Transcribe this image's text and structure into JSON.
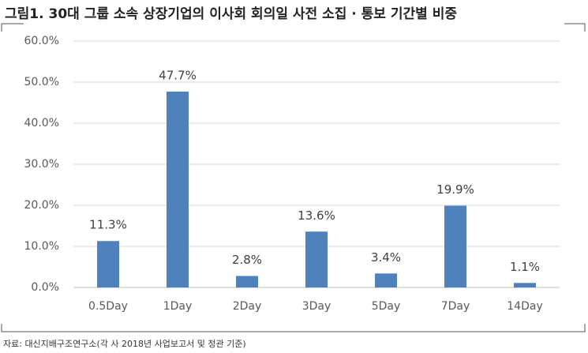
{
  "chart_data": {
    "type": "bar",
    "title": "그림1. 30대 그룹 소속 상장기업의 이사회 회의일 사전 소집 · 통보 기간별 비중",
    "categories": [
      "0.5Day",
      "1Day",
      "2Day",
      "3Day",
      "5Day",
      "7Day",
      "14Day"
    ],
    "values": [
      11.3,
      47.7,
      2.8,
      13.6,
      3.4,
      19.9,
      1.1
    ],
    "value_labels": [
      "11.3%",
      "47.7%",
      "2.8%",
      "13.6%",
      "3.4%",
      "19.9%",
      "1.1%"
    ],
    "color": "#4f81bd",
    "ylim": [
      0,
      60
    ],
    "yticks": [
      {
        "value": 0,
        "label": "0.0%"
      },
      {
        "value": 10,
        "label": "10.0%"
      },
      {
        "value": 20,
        "label": "20.0%"
      },
      {
        "value": 30,
        "label": "30.0%"
      },
      {
        "value": 40,
        "label": "40.0%"
      },
      {
        "value": 50,
        "label": "50.0%"
      },
      {
        "value": 60,
        "label": "60.0%"
      }
    ],
    "grid": true,
    "source": "자료: 대신지배구조연구소(각 사 2018년 사업보고서 및 정관 기준)"
  }
}
